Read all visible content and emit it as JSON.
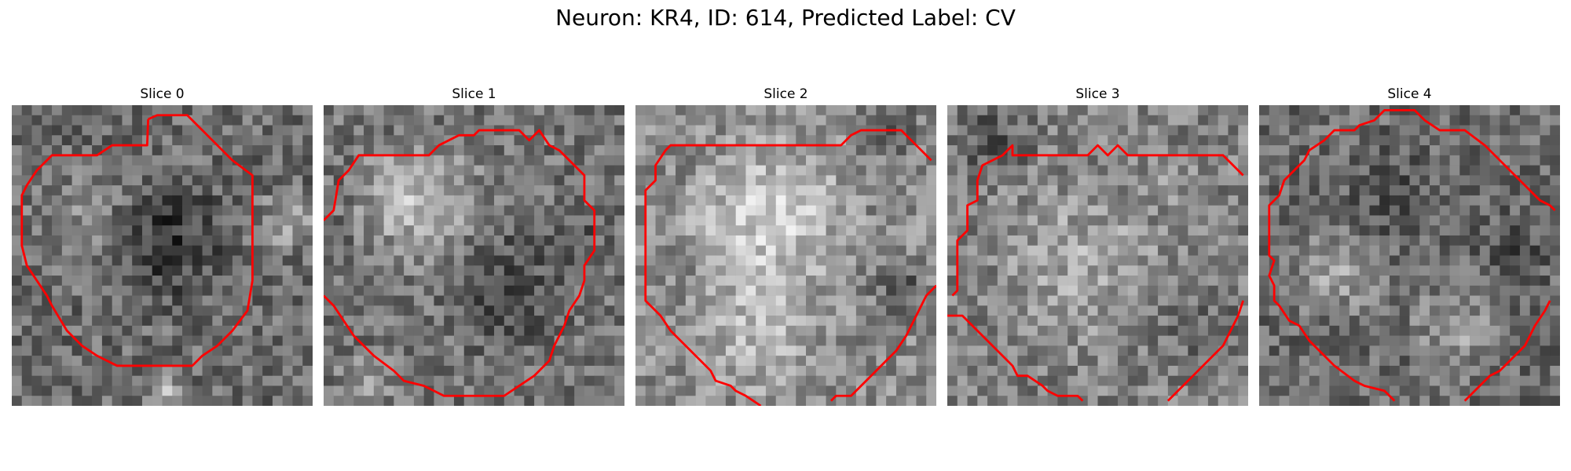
{
  "figure": {
    "title": "Neuron: KR4, ID: 614, Predicted Label: CV"
  },
  "panels": [
    {
      "title": "Slice 0",
      "contour_color": "#ff0000"
    },
    {
      "title": "Slice 1",
      "contour_color": "#ff0000"
    },
    {
      "title": "Slice 2",
      "contour_color": "#ff0000"
    },
    {
      "title": "Slice 3",
      "contour_color": "#ff0000"
    },
    {
      "title": "Slice 4",
      "contour_color": "#ff0000"
    }
  ]
}
